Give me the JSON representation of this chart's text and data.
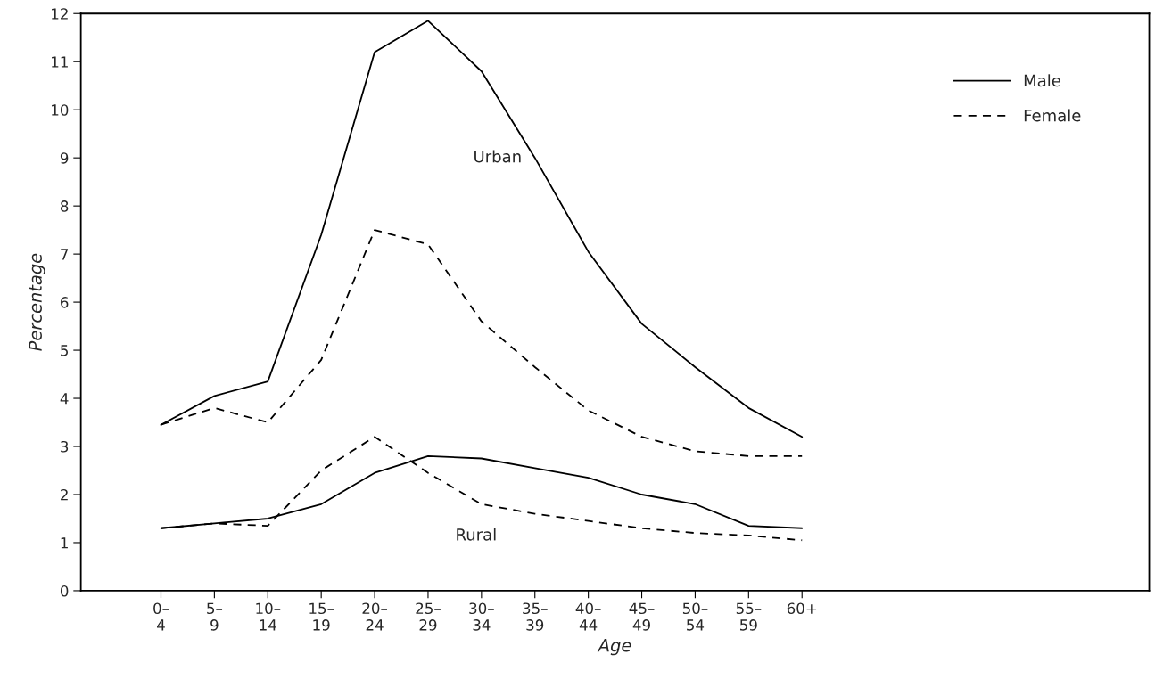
{
  "chart_data": {
    "type": "line",
    "xlabel": "Age",
    "ylabel": "Percentage",
    "categories": [
      "0–\n4",
      "5–\n9",
      "10–\n14",
      "15–\n19",
      "20–\n24",
      "25–\n29",
      "30–\n34",
      "35–\n39",
      "40–\n44",
      "45–\n49",
      "50–\n54",
      "55–\n59",
      "60+"
    ],
    "series": [
      {
        "name": "Male",
        "color": "#000000",
        "line_style": "solid",
        "values": [
          3.45,
          4.05,
          4.35,
          7.4,
          11.2,
          11.85,
          10.8,
          9.0,
          7.05,
          5.55,
          4.65,
          3.8,
          3.2
        ]
      },
      {
        "name": "Female",
        "color": "#000000",
        "line_style": "dashed",
        "values": [
          3.45,
          3.8,
          3.5,
          4.8,
          7.5,
          7.2,
          5.6,
          4.65,
          3.75,
          3.2,
          2.9,
          2.8,
          2.8
        ]
      },
      {
        "color": "#000000",
        "line_style": "solid",
        "values": [
          1.3,
          1.4,
          1.5,
          1.8,
          2.45,
          2.8,
          2.75,
          2.55,
          2.35,
          2.0,
          1.8,
          1.35,
          1.3
        ]
      },
      {
        "color": "#000000",
        "line_style": "dashed",
        "values": [
          1.3,
          1.4,
          1.35,
          2.5,
          3.2,
          2.45,
          1.8,
          1.6,
          1.45,
          1.3,
          1.2,
          1.15,
          1.05
        ]
      }
    ],
    "annotations": [
      "Urban",
      "Rural"
    ],
    "ylim": [
      0,
      12
    ],
    "yticks": [
      0,
      1,
      2,
      3,
      4,
      5,
      6,
      7,
      8,
      9,
      10,
      11,
      12
    ],
    "grid": false,
    "legend": "top right",
    "marker": "none"
  }
}
